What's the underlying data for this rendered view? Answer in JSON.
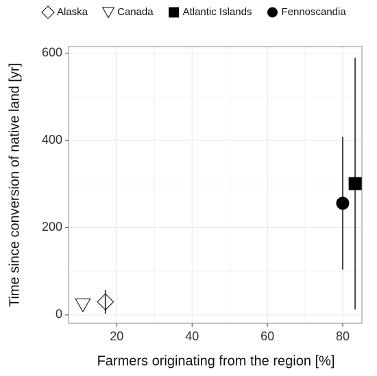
{
  "chart_data": {
    "type": "scatter",
    "xlabel": "Farmers originating from the region [%]",
    "ylabel": "Time since conversion of native land [yr]",
    "xlim": [
      7.2,
      85.1
    ],
    "ylim": [
      -19,
      615
    ],
    "xticks": [
      20,
      40,
      60,
      80
    ],
    "yticks": [
      0,
      200,
      400,
      600
    ],
    "grid": true,
    "legend": "top",
    "series": [
      {
        "name": "Alaska",
        "marker": "diamond",
        "filled": false,
        "color": "#000000",
        "x": [
          17
        ],
        "values": [
          30
        ],
        "err": [
          27
        ]
      },
      {
        "name": "Canada",
        "marker": "triangle-down",
        "filled": false,
        "color": "#000000",
        "x": [
          11
        ],
        "values": [
          23
        ]
      },
      {
        "name": "Atlantic Islands",
        "marker": "square",
        "filled": true,
        "color": "#000000",
        "x": [
          83.3
        ],
        "values": [
          301
        ],
        "err": [
          288
        ]
      },
      {
        "name": "Fennoscandia",
        "marker": "circle",
        "filled": true,
        "color": "#000000",
        "x": [
          80
        ],
        "values": [
          256
        ],
        "err": [
          152
        ]
      }
    ]
  }
}
